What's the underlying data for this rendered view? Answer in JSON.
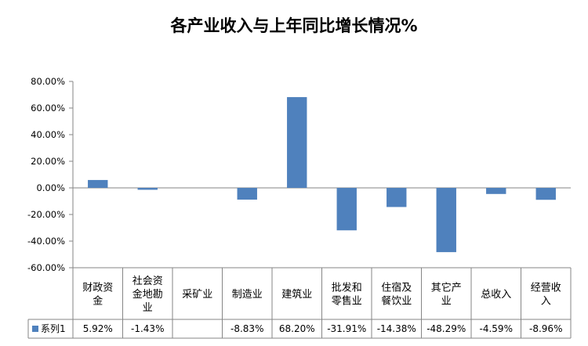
{
  "chart_data": {
    "type": "bar",
    "title": "各产业收入与上年同比增长情况%",
    "categories": [
      [
        "财政资",
        "金"
      ],
      [
        "社会资",
        "金地勘",
        "业"
      ],
      [
        "采矿业"
      ],
      [
        "制造业"
      ],
      [
        "建筑业"
      ],
      [
        "批发和",
        "零售业"
      ],
      [
        "住宿及",
        "餐饮业"
      ],
      [
        "其它产",
        "业"
      ],
      [
        "总收入"
      ],
      [
        "经营收",
        "入"
      ]
    ],
    "series": [
      {
        "name": "系列1",
        "values": [
          5.92,
          -1.43,
          null,
          -8.83,
          68.2,
          -31.91,
          -14.38,
          -48.29,
          -4.59,
          -8.96
        ],
        "labels": [
          "5.92%",
          "-1.43%",
          "",
          "-8.83%",
          "68.20%",
          "-31.91%",
          "-14.38%",
          "-48.29%",
          "-4.59%",
          "-8.96%"
        ]
      }
    ],
    "ylim": [
      -60,
      80
    ],
    "yticks": [
      80,
      60,
      40,
      20,
      0,
      -20,
      -40,
      -60
    ],
    "ytick_labels": [
      "80.00%",
      "60.00%",
      "40.00%",
      "20.00%",
      "0.00%",
      "-20.00%",
      "-40.00%",
      "-60.00%"
    ],
    "grid": false,
    "legend": "data-table",
    "colors": {
      "bar": "#4F81BD",
      "axis": "#868686"
    }
  }
}
